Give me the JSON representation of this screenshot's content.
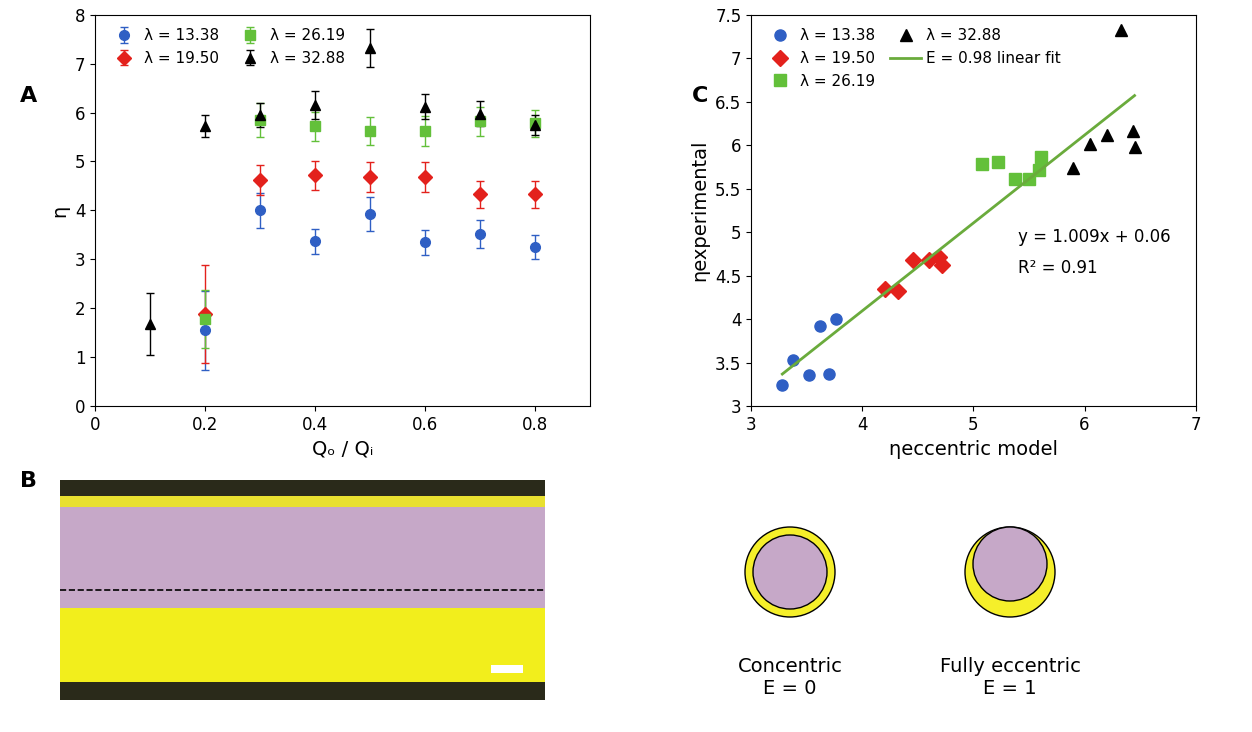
{
  "chart_data": [
    {
      "type": "scatter",
      "title": "A",
      "x_label": "Qₒ / Qᵢ",
      "y_label": "η",
      "x": [
        0.1,
        0.2,
        0.3,
        0.4,
        0.5,
        0.6,
        0.7,
        0.8
      ],
      "series": [
        {
          "name": "λ = 13.38",
          "color": "#2f5fc4",
          "marker": "circle",
          "values": [
            null,
            1.55,
            4.0,
            3.37,
            3.92,
            3.35,
            3.52,
            3.25
          ],
          "errors": [
            null,
            0.8,
            0.35,
            0.25,
            0.35,
            0.25,
            0.28,
            0.25
          ]
        },
        {
          "name": "λ = 19.50",
          "color": "#e3211c",
          "marker": "diamond",
          "values": [
            null,
            1.88,
            4.62,
            4.72,
            4.68,
            4.68,
            4.33,
            4.33
          ],
          "errors": [
            null,
            1.0,
            0.3,
            0.3,
            0.3,
            0.3,
            0.27,
            0.28
          ]
        },
        {
          "name": "λ = 26.19",
          "color": "#63c03a",
          "marker": "square",
          "values": [
            null,
            1.78,
            5.85,
            5.72,
            5.62,
            5.62,
            5.82,
            5.78
          ],
          "errors": [
            null,
            0.6,
            0.35,
            0.3,
            0.28,
            0.3,
            0.3,
            0.28
          ]
        },
        {
          "name": "λ = 32.88",
          "color": "#000000",
          "marker": "triangle",
          "values": [
            1.68,
            5.72,
            5.95,
            6.15,
            7.32,
            6.12,
            5.98,
            5.75
          ],
          "errors": [
            0.63,
            0.22,
            0.25,
            0.28,
            0.38,
            0.25,
            0.25,
            0.2
          ]
        }
      ],
      "xlim": [
        0,
        0.9
      ],
      "xticks": [
        0,
        0.2,
        0.4,
        0.6,
        0.8
      ],
      "ylim": [
        0,
        8
      ],
      "yticks": [
        0,
        1,
        2,
        3,
        4,
        5,
        6,
        7,
        8
      ],
      "legend": "upper left",
      "grid": false
    },
    {
      "type": "scatter",
      "title": "C",
      "x_label": "ηeccentric model",
      "y_label": "ηexperimental",
      "series": [
        {
          "name": "λ = 13.38",
          "color": "#2f5fc4",
          "marker": "circle",
          "x": [
            3.28,
            3.38,
            3.52,
            3.62,
            3.7,
            3.76
          ],
          "values": [
            3.25,
            3.53,
            3.36,
            3.92,
            3.37,
            4.0
          ]
        },
        {
          "name": "λ = 19.50",
          "color": "#e3211c",
          "marker": "diamond",
          "x": [
            4.2,
            4.32,
            4.46,
            4.6,
            4.69,
            4.72
          ],
          "values": [
            4.35,
            4.33,
            4.68,
            4.68,
            4.72,
            4.62
          ]
        },
        {
          "name": "λ = 26.19",
          "color": "#63c03a",
          "marker": "square",
          "x": [
            5.08,
            5.22,
            5.37,
            5.5,
            5.59,
            5.61
          ],
          "values": [
            5.78,
            5.81,
            5.61,
            5.61,
            5.71,
            5.86
          ]
        },
        {
          "name": "λ = 32.88",
          "color": "#000000",
          "marker": "triangle",
          "x": [
            5.9,
            6.05,
            6.2,
            6.33,
            6.44,
            6.45
          ],
          "values": [
            5.74,
            6.01,
            6.12,
            7.32,
            6.16,
            5.98
          ]
        },
        {
          "name": "E = 0.98 linear fit",
          "type": "line",
          "color": "#6aab3c",
          "line_style": "solid",
          "x": [
            3.28,
            6.45
          ],
          "values": [
            3.37,
            6.57
          ]
        }
      ],
      "annotations": [
        "y = 1.009x + 0.06",
        "R² = 0.91"
      ],
      "xlim": [
        3,
        7
      ],
      "xticks": [
        3,
        4,
        5,
        6,
        7
      ],
      "ylim": [
        3,
        7.5
      ],
      "yticks": [
        3,
        3.5,
        4,
        4.5,
        5,
        5.5,
        6,
        6.5,
        7,
        7.5
      ],
      "legend": "upper left",
      "grid": false
    }
  ],
  "diagram": {
    "title": "B",
    "schematics": [
      "Concentric\nE = 0",
      "Fully eccentric\nE = 1"
    ]
  }
}
